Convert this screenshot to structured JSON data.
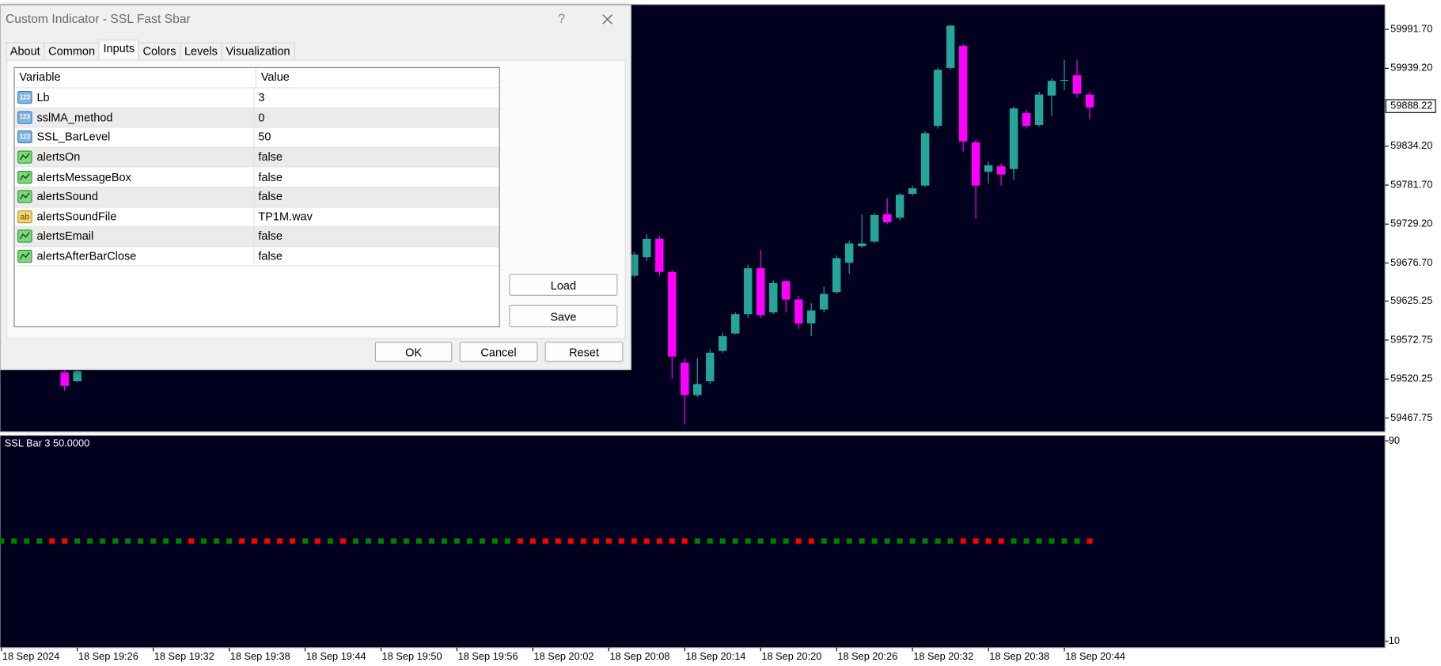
{
  "window": {
    "title": "Custom Indicator - SSL Fast Sbar",
    "help": "?",
    "tabs": [
      "About",
      "Common",
      "Inputs",
      "Colors",
      "Levels",
      "Visualization"
    ],
    "active_tab": 2,
    "buttons": {
      "load": "Load",
      "save": "Save",
      "ok": "OK",
      "cancel": "Cancel",
      "reset": "Reset"
    }
  },
  "table": {
    "columns": [
      "Variable",
      "Value"
    ],
    "rows": [
      {
        "icon": "123",
        "name": "Lb",
        "value": 3
      },
      {
        "icon": "123",
        "name": "sslMA_method",
        "value": 0
      },
      {
        "icon": "123",
        "name": "SSL_BarLevel",
        "value": 50
      },
      {
        "icon": null,
        "name": "alertsOn",
        "value": "false"
      },
      {
        "icon": null,
        "name": "alertsMessageBox",
        "value": "false"
      },
      {
        "icon": null,
        "name": "alertsSound",
        "value": "false"
      },
      {
        "icon": "ab",
        "name": "alertsSoundFile",
        "value": "TP1M.wav"
      },
      {
        "icon": null,
        "name": "alertsEmail",
        "value": "false"
      },
      {
        "icon": null,
        "name": "alertsAfterBarClose",
        "value": "false"
      }
    ]
  },
  "chart_data": [
    {
      "type": "candlestick",
      "up_color": "#26a69a",
      "down_color": "#ff00ff",
      "ylim": [
        59449.2,
        60025.1
      ],
      "yticks": [
        {
          "value": 59991.7,
          "label": "59991.70"
        },
        {
          "value": 59939.2,
          "label": "59939.20"
        },
        {
          "value": 59834.2,
          "label": "59834.20"
        },
        {
          "value": 59781.7,
          "label": "59781.70"
        },
        {
          "value": 59729.2,
          "label": "59729.20"
        },
        {
          "value": 59676.7,
          "label": "59676.70"
        },
        59625.25,
        59572.75,
        59520.25,
        59467.75
      ],
      "current_price": 59888.22,
      "x": [
        "18 Sep 2024",
        null,
        null,
        null,
        null,
        null,
        "18 Sep 19:26",
        null,
        null,
        null,
        null,
        null,
        "18 Sep 19:32",
        null,
        null,
        null,
        null,
        null,
        "18 Sep 19:38",
        null,
        null,
        null,
        null,
        null,
        "18 Sep 19:44",
        null,
        null,
        null,
        null,
        null,
        "18 Sep 19:50",
        null,
        null,
        null,
        null,
        null,
        "18 Sep 19:56",
        null,
        null,
        null,
        null,
        null,
        "18 Sep 20:02",
        null,
        null,
        null,
        null,
        null,
        "18 Sep 20:08",
        null,
        null,
        null,
        null,
        null,
        "18 Sep 20:14",
        null,
        null,
        null,
        null,
        null,
        "18 Sep 20:20",
        null,
        null,
        null,
        null,
        null,
        "18 Sep 20:26",
        null,
        null,
        null,
        null,
        null,
        "18 Sep 20:32",
        null,
        null,
        null,
        null,
        null,
        "18 Sep 20:38",
        null,
        null,
        null,
        null,
        null,
        "18 Sep 20:44",
        null,
        null
      ],
      "candles": [
        null,
        null,
        null,
        null,
        null,
        {
          "open": 59529.7,
          "high": 59535.9,
          "low": 59504.9,
          "close": 59511.1
        },
        {
          "open": 59517.3,
          "high": 59535.9,
          "low": 59516.0,
          "close": 59530.9
        },
        null,
        null,
        null,
        null,
        null,
        null,
        null,
        null,
        null,
        null,
        null,
        null,
        null,
        null,
        null,
        null,
        null,
        null,
        null,
        null,
        null,
        null,
        null,
        null,
        null,
        null,
        null,
        null,
        null,
        null,
        null,
        null,
        null,
        null,
        null,
        null,
        null,
        null,
        null,
        null,
        null,
        null,
        null,
        {
          "open": 59659.7,
          "high": 59691.9,
          "low": 59657.3,
          "close": 59688.2
        },
        {
          "open": 59684.5,
          "high": 59715.5,
          "low": 59679.5,
          "close": 59709.3
        },
        {
          "open": 59709.3,
          "high": 59713.0,
          "low": 59659.7,
          "close": 59664.7
        },
        {
          "open": 59664.7,
          "high": 59667.2,
          "low": 59521.0,
          "close": 59550.7
        },
        {
          "open": 59542.0,
          "high": 59548.2,
          "low": 59459.1,
          "close": 59498.7
        },
        {
          "open": 59498.7,
          "high": 59548.2,
          "low": 59496.2,
          "close": 59513.5
        },
        {
          "open": 59517.3,
          "high": 59560.6,
          "low": 59513.5,
          "close": 59555.7
        },
        {
          "open": 59558.2,
          "high": 59582.9,
          "low": 59555.7,
          "close": 59578.0
        },
        {
          "open": 59581.7,
          "high": 59610.2,
          "low": 59580.5,
          "close": 59607.7
        },
        {
          "open": 59607.7,
          "high": 59674.6,
          "low": 59602.7,
          "close": 59669.6
        },
        {
          "open": 59669.6,
          "high": 59694.4,
          "low": 59602.7,
          "close": 59606.5
        },
        {
          "open": 59610.2,
          "high": 59653.5,
          "low": 59607.7,
          "close": 59649.8
        },
        {
          "open": 59652.3,
          "high": 59653.5,
          "low": 59610.2,
          "close": 59627.5
        },
        {
          "open": 59627.5,
          "high": 59632.5,
          "low": 59587.9,
          "close": 59595.3
        },
        {
          "open": 59595.3,
          "high": 59622.6,
          "low": 59578.0,
          "close": 59612.7
        },
        {
          "open": 59613.9,
          "high": 59644.9,
          "low": 59610.2,
          "close": 59635.0
        },
        {
          "open": 59637.4,
          "high": 59687.0,
          "low": 59635.0,
          "close": 59683.3
        },
        {
          "open": 59677.1,
          "high": 59706.8,
          "low": 59662.2,
          "close": 59703.1
        },
        {
          "open": 59699.4,
          "high": 59741.5,
          "low": 59696.9,
          "close": 59703.1
        },
        {
          "open": 59705.6,
          "high": 59744.0,
          "low": 59703.1,
          "close": 59741.5
        },
        {
          "open": 59742.7,
          "high": 59763.8,
          "low": 59729.1,
          "close": 59731.6
        },
        {
          "open": 59737.8,
          "high": 59771.2,
          "low": 59734.0,
          "close": 59768.7
        },
        {
          "open": 59770.0,
          "high": 59781.1,
          "low": 59767.5,
          "close": 59777.4
        },
        {
          "open": 59781.1,
          "high": 59854.2,
          "low": 59779.9,
          "close": 59851.7
        },
        {
          "open": 59861.6,
          "high": 59939.7,
          "low": 59857.9,
          "close": 59937.2
        },
        {
          "open": 59939.7,
          "high": 59997.9,
          "low": 59937.2,
          "close": 59996.7
        },
        {
          "open": 59969.4,
          "high": 59971.9,
          "low": 59827.0,
          "close": 59840.6
        },
        {
          "open": 59839.3,
          "high": 59843.1,
          "low": 59736.5,
          "close": 59781.1
        },
        {
          "open": 59799.7,
          "high": 59813.3,
          "low": 59783.6,
          "close": 59808.4
        },
        {
          "open": 59807.1,
          "high": 59810.8,
          "low": 59781.1,
          "close": 59796.0
        },
        {
          "open": 59803.4,
          "high": 59887.6,
          "low": 59788.6,
          "close": 59885.2
        },
        {
          "open": 59879.0,
          "high": 59882.7,
          "low": 59857.9,
          "close": 59861.6
        },
        {
          "open": 59862.9,
          "high": 59907.5,
          "low": 59860.4,
          "close": 59903.8
        },
        {
          "open": 59902.5,
          "high": 59926.0,
          "low": 59875.3,
          "close": 59922.3
        },
        {
          "open": 59922.3,
          "high": 59950.8,
          "low": 59909.9,
          "close": 59923.6
        },
        {
          "open": 59929.8,
          "high": 59950.8,
          "low": 59900.0,
          "close": 59905.0
        },
        {
          "open": 59903.8,
          "high": 59907.5,
          "low": 59870.3,
          "close": 59886.4
        }
      ]
    },
    {
      "type": "dots",
      "title": "SSL Bar 3 50.0000",
      "ylim": [
        10,
        90
      ],
      "yticks": [
        90,
        10
      ],
      "values": [
        50,
        50,
        50,
        50,
        50,
        50,
        50,
        50,
        50,
        50,
        50,
        50,
        50,
        50,
        50,
        50,
        50,
        50,
        50,
        50,
        50,
        50,
        50,
        50,
        50,
        50,
        50,
        50,
        50,
        50,
        50,
        50,
        50,
        50,
        50,
        50,
        50,
        50,
        50,
        50,
        50,
        50,
        50,
        50,
        50,
        50,
        50,
        50,
        50,
        50,
        50,
        50,
        50,
        50,
        50,
        50,
        50,
        50,
        50,
        50,
        50,
        50,
        50,
        50,
        50,
        50,
        50,
        50,
        50,
        50,
        50,
        50,
        50,
        50,
        50,
        50,
        50,
        50,
        50,
        50,
        50,
        50,
        50,
        50,
        50,
        50,
        50
      ],
      "colors": [
        "#008000",
        "#008000",
        "#008000",
        "#008000",
        "#ff0000",
        "#ff0000",
        "#008000",
        "#008000",
        "#008000",
        "#008000",
        "#008000",
        "#008000",
        "#008000",
        "#008000",
        "#008000",
        "#ff0000",
        "#008000",
        "#008000",
        "#008000",
        "#ff0000",
        "#ff0000",
        "#ff0000",
        "#ff0000",
        "#ff0000",
        "#008000",
        "#ff0000",
        "#008000",
        "#ff0000",
        "#008000",
        "#008000",
        "#008000",
        "#008000",
        "#008000",
        "#008000",
        "#008000",
        "#008000",
        "#008000",
        "#008000",
        "#008000",
        "#008000",
        "#008000",
        "#ff0000",
        "#ff0000",
        "#ff0000",
        "#ff0000",
        "#ff0000",
        "#ff0000",
        "#ff0000",
        "#ff0000",
        "#ff0000",
        "#ff0000",
        "#ff0000",
        "#ff0000",
        "#ff0000",
        "#ff0000",
        "#008000",
        "#008000",
        "#008000",
        "#008000",
        "#008000",
        "#008000",
        "#008000",
        "#008000",
        "#ff0000",
        "#ff0000",
        "#008000",
        "#008000",
        "#008000",
        "#008000",
        "#008000",
        "#008000",
        "#008000",
        "#008000",
        "#008000",
        "#008000",
        "#008000",
        "#ff0000",
        "#ff0000",
        "#ff0000",
        "#ff0000",
        "#008000",
        "#008000",
        "#008000",
        "#008000",
        "#008000",
        "#008000",
        "#ff0000"
      ]
    }
  ]
}
